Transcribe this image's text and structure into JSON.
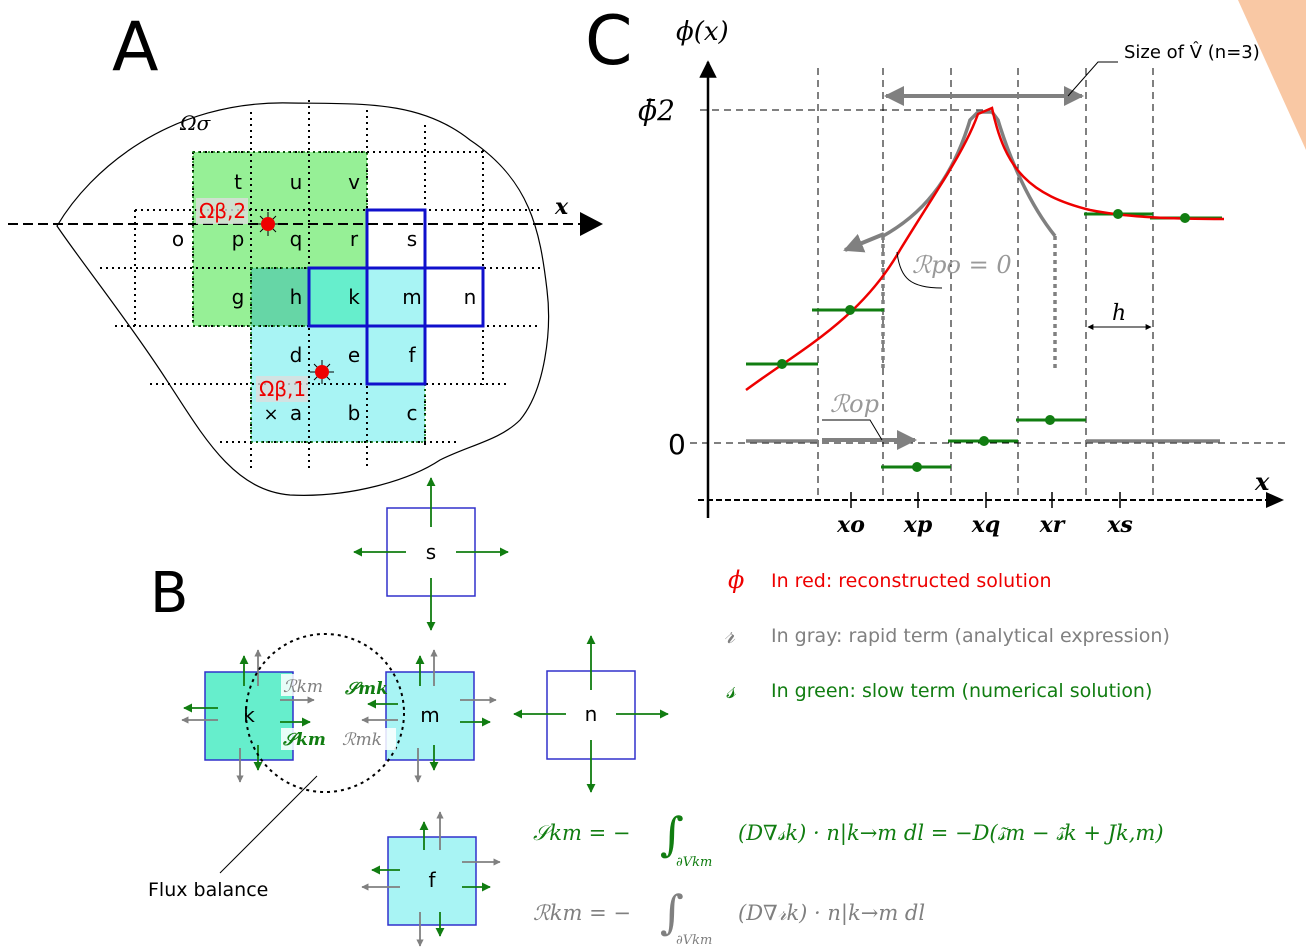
{
  "panels": {
    "a": "A",
    "b": "B",
    "c": "C"
  },
  "colors": {
    "red": "#ee0000",
    "gray": "#808080",
    "green": "#117d11",
    "blue": "#1010cc",
    "light_green": "#96f096",
    "cyan": "#a8f4f4",
    "teal": "#66eecc",
    "orange": "#f9c8a4"
  },
  "panel_a": {
    "domain_label": "Ωσ",
    "axis_label": "x",
    "beta2": "Ωβ,2",
    "beta1": "Ωβ,1",
    "cross": "×",
    "cells": {
      "t": "t",
      "u": "u",
      "v": "v",
      "o": "o",
      "p": "p",
      "q": "q",
      "r": "r",
      "s": "s",
      "g": "g",
      "h": "h",
      "k": "k",
      "m": "m",
      "n": "n",
      "d": "d",
      "e": "e",
      "f": "f",
      "a": "a",
      "b": "b",
      "c": "c"
    }
  },
  "panel_b": {
    "cells": {
      "s": "s",
      "k": "k",
      "m": "m",
      "n": "n",
      "f": "f"
    },
    "r_km": "ℛkm",
    "s_mk": "𝒮mk",
    "s_km": "𝒮km",
    "r_mk": "ℛmk",
    "flux_label": "Flux balance",
    "eq_s_lhs": "𝒮km = −",
    "eq_s_integrand": "(D∇𝓈k) · n|k→m dl = −D(𝓈̃m − 𝓈̃k + Jk,m)",
    "eq_r_lhs": "ℛkm = −",
    "eq_r_integrand": "(D∇𝓇k) · n|k→m dl",
    "eq_sub": "∂Vkm"
  },
  "panel_c": {
    "y_axis": "ϕ(x)",
    "x_axis": "x",
    "phi_bar": "ϕ̄2",
    "zero": "0",
    "size_label": "Size of V̂ (n=3)",
    "r_po": "ℛpo = 0",
    "r_op": "ℛop",
    "h": "h",
    "ticks": [
      "xo",
      "xp",
      "xq",
      "xr",
      "xs"
    ]
  },
  "legend": [
    {
      "symbol": "ϕ",
      "text": "In red: reconstructed solution"
    },
    {
      "symbol": "𝓇",
      "text": "In gray: rapid term (analytical expression)"
    },
    {
      "symbol": "𝓈",
      "text": "In green: slow term (numerical solution)"
    }
  ]
}
